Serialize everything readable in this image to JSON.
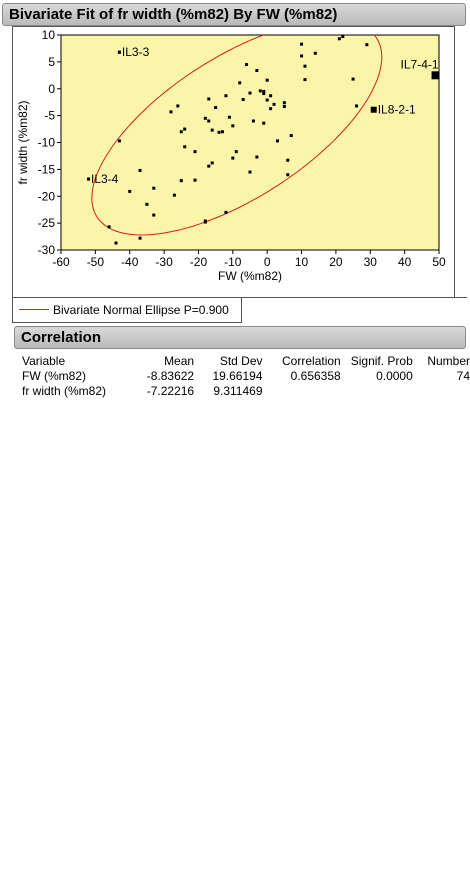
{
  "panel_title": "Bivariate Fit of fr width (%m82) By FW (%m82)",
  "legend_label": "Bivariate Normal Ellipse P=0.900",
  "correlation": {
    "title": "Correlation",
    "headers": [
      "Variable",
      "Mean",
      "Std Dev",
      "Correlation",
      "Signif. Prob",
      "Number"
    ],
    "rows": [
      [
        "FW (%m82)",
        "-8.83622",
        "19.66194",
        "0.656358",
        "0.0000",
        "74"
      ],
      [
        "fr width (%m82)",
        "-7.22216",
        "9.311469",
        "",
        "",
        ""
      ]
    ]
  },
  "colors": {
    "plot_bg": "#fbf5a9",
    "ellipse": "#d02020",
    "marker": "#000000"
  },
  "chart_data": {
    "type": "scatter",
    "xlabel": "FW (%m82)",
    "ylabel": "fr width (%m82)",
    "xlim": [
      -60,
      50
    ],
    "ylim": [
      -30,
      10
    ],
    "xticks": [
      -60,
      -50,
      -40,
      -30,
      -20,
      -10,
      0,
      10,
      20,
      30,
      40,
      50
    ],
    "yticks": [
      -30,
      -25,
      -20,
      -15,
      -10,
      -5,
      0,
      5,
      10
    ],
    "grid": false,
    "ellipse": {
      "label": "Bivariate Normal Ellipse P=0.900",
      "mean_x": -8.83622,
      "mean_y": -7.22216,
      "sd_x": 19.66194,
      "sd_y": 9.311469,
      "r": 0.656358,
      "chi2": 4.60517
    },
    "points": [
      [
        -43,
        6.8
      ],
      [
        -43,
        -9.7
      ],
      [
        -52,
        -16.8
      ],
      [
        -37,
        -15.2
      ],
      [
        -40,
        -19.1
      ],
      [
        -35,
        -21.5
      ],
      [
        -33,
        -18.5
      ],
      [
        -33,
        -23.5
      ],
      [
        -46,
        -25.7
      ],
      [
        -44,
        -28.7
      ],
      [
        -37,
        -27.8
      ],
      [
        -28,
        -4.3
      ],
      [
        -26,
        -3.2
      ],
      [
        -25,
        -8.0
      ],
      [
        -24,
        -7.5
      ],
      [
        -24,
        -10.8
      ],
      [
        -25,
        -17.1
      ],
      [
        -27,
        -19.8
      ],
      [
        -21,
        -11.7
      ],
      [
        -21,
        -17.0
      ],
      [
        -18,
        -5.5
      ],
      [
        -17,
        -6.0
      ],
      [
        -17,
        -1.9
      ],
      [
        -17,
        -14.4
      ],
      [
        -16,
        -13.8
      ],
      [
        -16,
        -7.7
      ],
      [
        -15,
        -3.5
      ],
      [
        -14,
        -8.1
      ],
      [
        -13,
        -8.0
      ],
      [
        -12,
        -1.3
      ],
      [
        -11,
        -5.3
      ],
      [
        -10,
        -6.9
      ],
      [
        -10,
        -12.9
      ],
      [
        -9,
        -11.7
      ],
      [
        -8,
        1.1
      ],
      [
        -7,
        -2.0
      ],
      [
        -6,
        4.5
      ],
      [
        -5,
        -0.8
      ],
      [
        -5,
        -15.5
      ],
      [
        -4,
        -6.0
      ],
      [
        -3,
        3.4
      ],
      [
        -3,
        -12.7
      ],
      [
        -2,
        -0.4
      ],
      [
        -1,
        -6.4
      ],
      [
        -1,
        -0.5
      ],
      [
        -1,
        -0.9
      ],
      [
        0,
        1.6
      ],
      [
        0,
        -2.1
      ],
      [
        1,
        -1.3
      ],
      [
        1,
        -3.7
      ],
      [
        2,
        -2.9
      ],
      [
        3,
        -9.7
      ],
      [
        5,
        -2.6
      ],
      [
        5,
        -3.3
      ],
      [
        6,
        -13.3
      ],
      [
        6,
        -16.0
      ],
      [
        7,
        -8.7
      ],
      [
        10,
        6.1
      ],
      [
        10,
        8.3
      ],
      [
        11,
        4.2
      ],
      [
        11,
        1.7
      ],
      [
        14,
        6.6
      ],
      [
        21,
        9.3
      ],
      [
        22,
        9.7
      ],
      [
        25,
        1.8
      ],
      [
        26,
        -3.2
      ],
      [
        29,
        8.2
      ],
      [
        -12,
        -23.0
      ],
      [
        -18,
        -24.8
      ],
      [
        -18,
        -24.6
      ]
    ],
    "labeled_points": [
      {
        "label": "IL3-3",
        "x": -43,
        "y": 6.8
      },
      {
        "label": "IL3-4",
        "x": -52,
        "y": -16.8
      },
      {
        "label": "IL7-4-1",
        "x": 49,
        "y": 2.5
      },
      {
        "label": "IL8-2-1",
        "x": 31,
        "y": -3.9
      }
    ]
  }
}
